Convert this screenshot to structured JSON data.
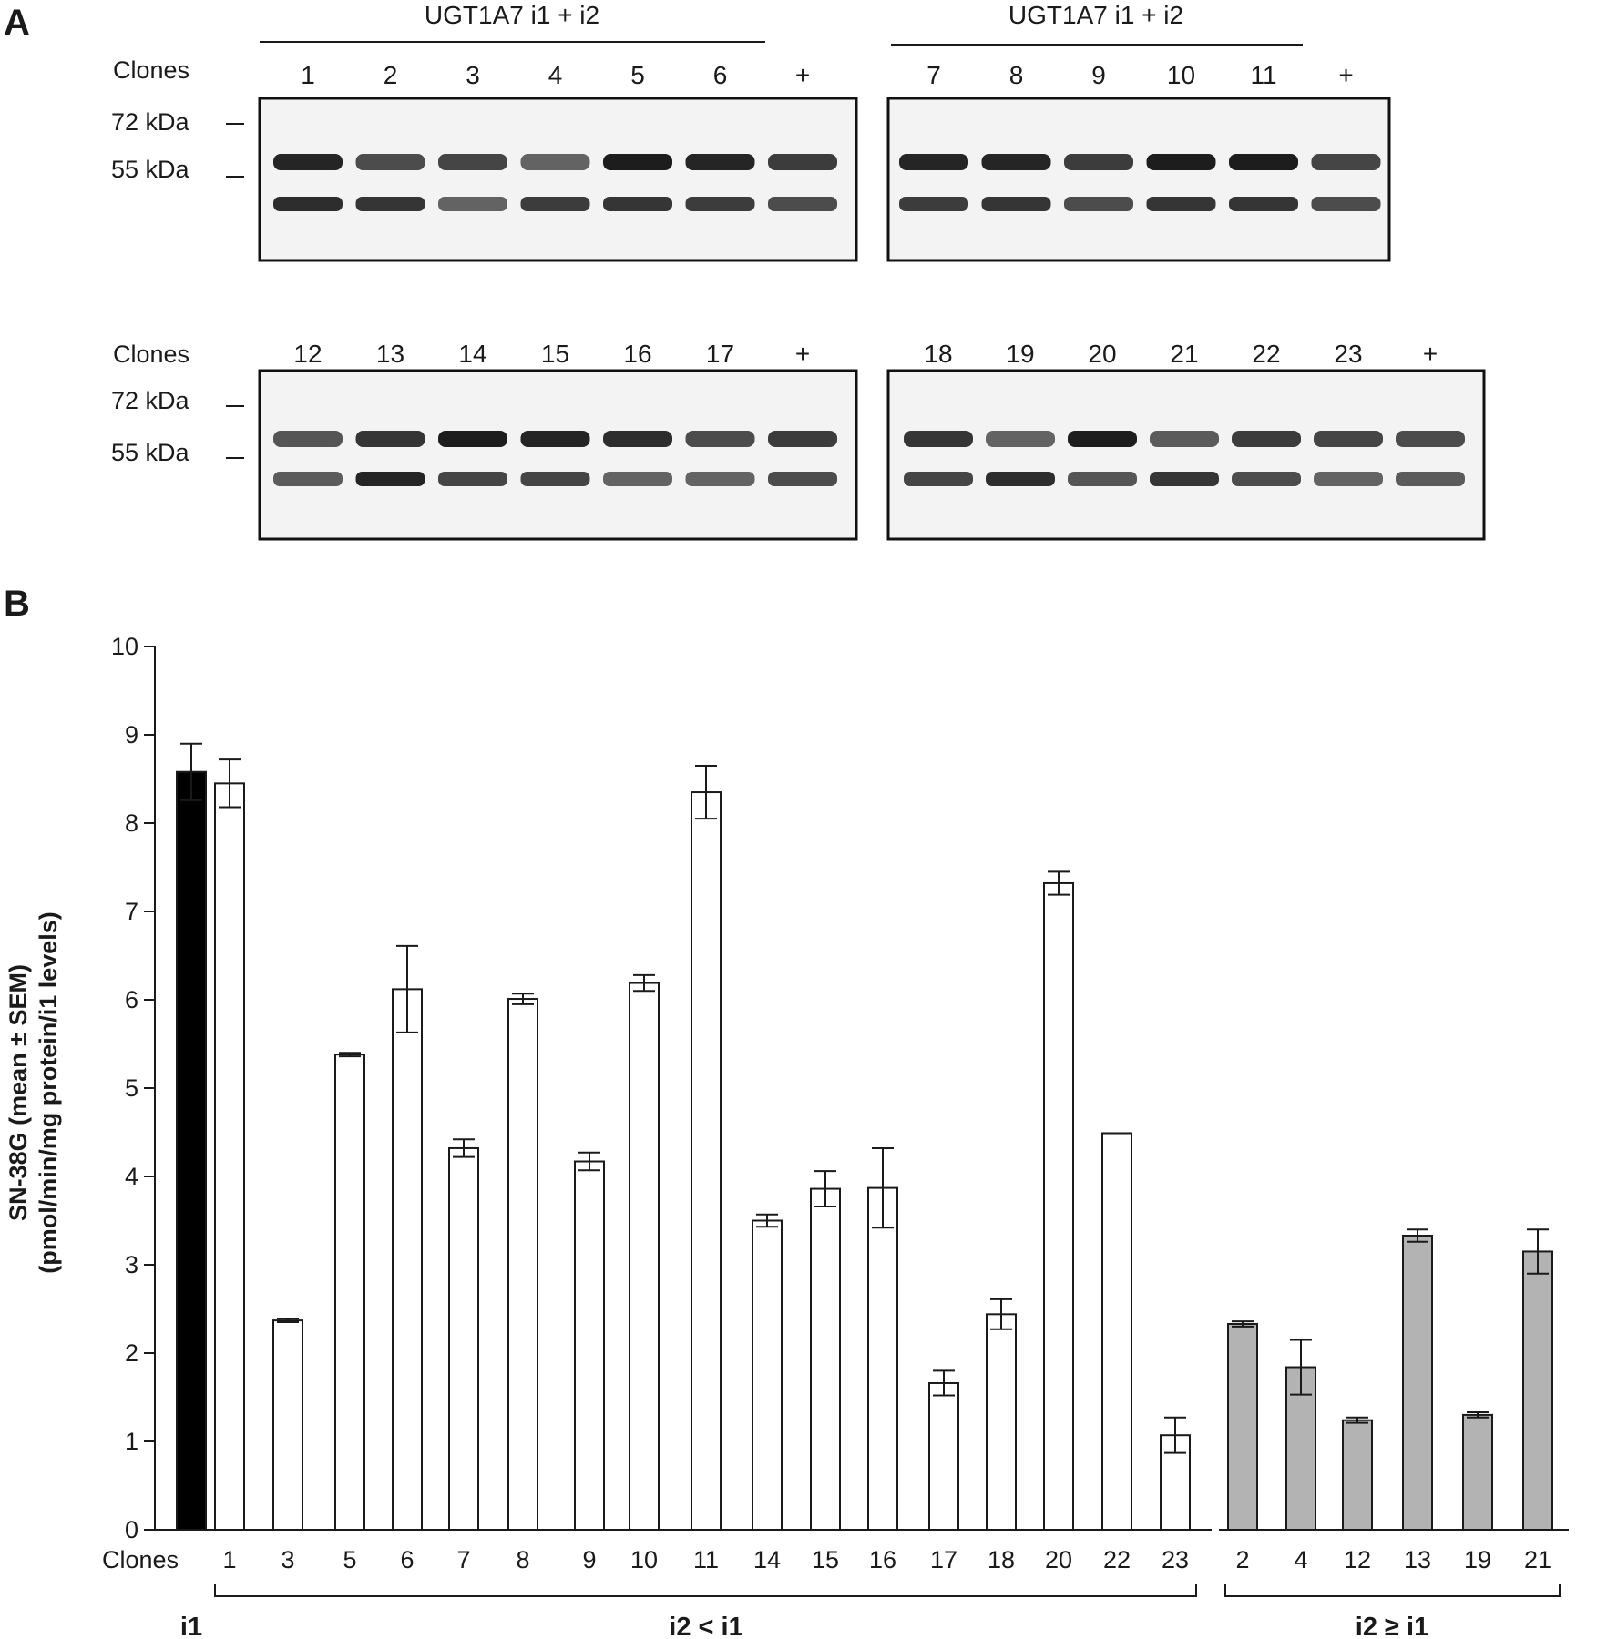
{
  "panel_a": {
    "letter": "A",
    "clones_label": "Clones",
    "marker_72": "72 kDa",
    "marker_55": "55 kDa",
    "group_labels": [
      "UGT1A7  i1 + i2",
      "UGT1A7 i1 + i2"
    ],
    "blots": [
      {
        "lanes": [
          "1",
          "2",
          "3",
          "4",
          "5",
          "6",
          "+"
        ],
        "upper_band": [
          0.95,
          0.7,
          0.75,
          0.55,
          1.0,
          0.95,
          0.8
        ],
        "lower_band": [
          0.9,
          0.85,
          0.55,
          0.8,
          0.85,
          0.8,
          0.7
        ]
      },
      {
        "lanes": [
          "7",
          "8",
          "9",
          "10",
          "11",
          "+"
        ],
        "upper_band": [
          0.95,
          0.95,
          0.8,
          1.0,
          1.0,
          0.75
        ],
        "lower_band": [
          0.8,
          0.85,
          0.7,
          0.85,
          0.85,
          0.7
        ]
      },
      {
        "lanes": [
          "12",
          "13",
          "14",
          "15",
          "16",
          "17",
          "+"
        ],
        "upper_band": [
          0.65,
          0.85,
          1.0,
          0.95,
          0.9,
          0.7,
          0.8
        ],
        "lower_band": [
          0.6,
          0.95,
          0.75,
          0.75,
          0.55,
          0.55,
          0.7
        ]
      },
      {
        "lanes": [
          "18",
          "19",
          "20",
          "21",
          "22",
          "23",
          "+"
        ],
        "upper_band": [
          0.85,
          0.55,
          1.0,
          0.6,
          0.8,
          0.75,
          0.7
        ],
        "lower_band": [
          0.75,
          0.9,
          0.65,
          0.85,
          0.7,
          0.55,
          0.6
        ]
      }
    ]
  },
  "chart_data": {
    "type": "bar",
    "panel_letter": "B",
    "ylabel_line1": "SN-38G (mean ± SEM)",
    "ylabel_line2": "(pmol/min/mg protein/i1 levels)",
    "xlabel": "Clones",
    "ylim": [
      0,
      10
    ],
    "yticks": [
      0,
      1,
      2,
      3,
      4,
      5,
      6,
      7,
      8,
      9,
      10
    ],
    "grid": false,
    "groups": [
      {
        "label": "i1",
        "color": "#000000",
        "categories": [
          ""
        ],
        "values": [
          8.58
        ],
        "sem": [
          0.32
        ]
      },
      {
        "label": "i2 < i1",
        "color": "#ffffff",
        "categories": [
          "1",
          "3",
          "5",
          "6",
          "7",
          "8",
          "9",
          "10",
          "11",
          "14",
          "15",
          "16",
          "17",
          "18",
          "20",
          "22",
          "23"
        ],
        "values": [
          8.45,
          2.37,
          5.38,
          6.12,
          4.32,
          6.01,
          4.17,
          6.19,
          8.35,
          3.5,
          3.86,
          3.87,
          1.66,
          2.44,
          7.32,
          4.49,
          1.07
        ],
        "sem": [
          0.27,
          0.02,
          0.02,
          0.49,
          0.1,
          0.06,
          0.1,
          0.09,
          0.3,
          0.07,
          0.2,
          0.45,
          0.14,
          0.17,
          0.13,
          0.0,
          0.2
        ]
      },
      {
        "label": "i2 ≥ i1",
        "color": "#b3b3b3",
        "categories": [
          "2",
          "4",
          "12",
          "13",
          "19",
          "21"
        ],
        "values": [
          2.33,
          1.84,
          1.24,
          3.33,
          1.3,
          3.15
        ],
        "sem": [
          0.03,
          0.31,
          0.03,
          0.07,
          0.03,
          0.25
        ]
      }
    ]
  }
}
